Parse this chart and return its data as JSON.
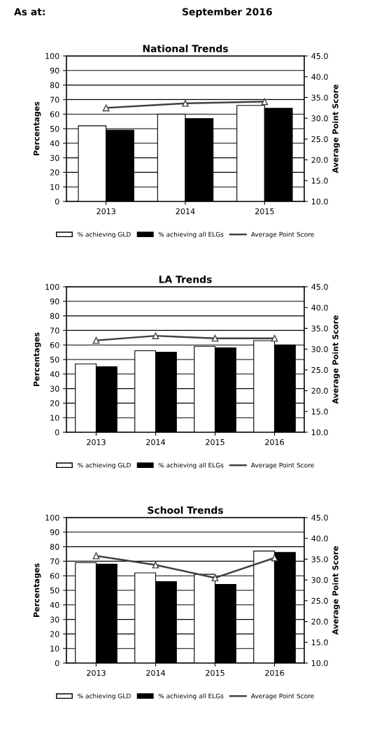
{
  "chart_data": [
    {
      "type": "bar",
      "title": "National Trends",
      "ylabel": "Percentages",
      "y2label": "Average Point Score",
      "annotations": [
        "As at:",
        "September 2016"
      ],
      "categories": [
        "2013",
        "2014",
        "2015"
      ],
      "series": [
        {
          "name": "% achieving GLD",
          "color": "#ffffff",
          "values": [
            52,
            60,
            66
          ]
        },
        {
          "name": "% achieving all ELGs",
          "color": "#000000",
          "values": [
            49,
            57,
            64
          ]
        },
        {
          "name": "Average Point Score",
          "type": "line",
          "axis": "y2",
          "color": "#404040",
          "marker": "triangle",
          "values": [
            32.5,
            33.6,
            34.0
          ]
        }
      ],
      "ylim": [
        0,
        100
      ],
      "yticks": [
        0,
        10,
        20,
        30,
        40,
        50,
        60,
        70,
        80,
        90,
        100
      ],
      "y2lim": [
        10,
        45
      ],
      "y2ticks": [
        {
          "value": 10,
          "label": "10.0"
        },
        {
          "value": 15,
          "label": "15.0"
        },
        {
          "value": 20,
          "label": "20.0"
        },
        {
          "value": 25,
          "label": "25.0"
        },
        {
          "value": 30,
          "label": "30.0"
        },
        {
          "value": 35,
          "label": "35.0"
        },
        {
          "value": 40,
          "label": "40.0"
        },
        {
          "value": 45,
          "label": "45.0"
        }
      ],
      "grid": "y",
      "legend": "bottom"
    },
    {
      "type": "bar",
      "title": "LA Trends",
      "ylabel": "Percentages",
      "y2label": "Average Point Score",
      "categories": [
        "2013",
        "2014",
        "2015",
        "2016"
      ],
      "series": [
        {
          "name": "% achieving GLD",
          "color": "#ffffff",
          "values": [
            47,
            56,
            59,
            63
          ]
        },
        {
          "name": "% achieving all ELGs",
          "color": "#000000",
          "values": [
            45,
            55,
            58,
            60
          ]
        },
        {
          "name": "Average Point Score",
          "type": "line",
          "axis": "y2",
          "color": "#404040",
          "marker": "triangle",
          "values": [
            32.1,
            33.2,
            32.6,
            32.6
          ]
        }
      ],
      "ylim": [
        0,
        100
      ],
      "yticks": [
        0,
        10,
        20,
        30,
        40,
        50,
        60,
        70,
        80,
        90,
        100
      ],
      "y2lim": [
        10,
        45
      ],
      "y2ticks": [
        {
          "value": 10,
          "label": "10.0"
        },
        {
          "value": 15,
          "label": "15.0"
        },
        {
          "value": 20,
          "label": "20.0"
        },
        {
          "value": 25,
          "label": "25.0"
        },
        {
          "value": 30,
          "label": "30.0"
        },
        {
          "value": 35,
          "label": "35.0"
        },
        {
          "value": 40,
          "label": "40.0"
        },
        {
          "value": 45,
          "label": "45.0"
        }
      ],
      "grid": "y",
      "legend": "bottom"
    },
    {
      "type": "bar",
      "title": "School Trends",
      "ylabel": "Percentages",
      "y2label": "Average Point Score",
      "categories": [
        "2013",
        "2014",
        "2015",
        "2016"
      ],
      "series": [
        {
          "name": "% achieving GLD",
          "color": "#ffffff",
          "values": [
            69,
            62,
            61,
            77
          ]
        },
        {
          "name": "% achieving all ELGs",
          "color": "#000000",
          "values": [
            68,
            56,
            54,
            76
          ]
        },
        {
          "name": "Average Point Score",
          "type": "line",
          "axis": "y2",
          "color": "#404040",
          "marker": "triangle",
          "values": [
            35.8,
            33.6,
            30.5,
            35.3
          ]
        }
      ],
      "ylim": [
        0,
        100
      ],
      "yticks": [
        0,
        10,
        20,
        30,
        40,
        50,
        60,
        70,
        80,
        90,
        100
      ],
      "y2lim": [
        10,
        45
      ],
      "y2ticks": [
        {
          "value": 10,
          "label": "10.0"
        },
        {
          "value": 15,
          "label": "15.0"
        },
        {
          "value": 20,
          "label": "20.0"
        },
        {
          "value": 25,
          "label": "25.0"
        },
        {
          "value": 30,
          "label": "30.0"
        },
        {
          "value": 35,
          "label": "35.0"
        },
        {
          "value": 40,
          "label": "40.0"
        },
        {
          "value": 45,
          "label": "45.0"
        }
      ],
      "grid": "y",
      "legend": "bottom"
    }
  ]
}
